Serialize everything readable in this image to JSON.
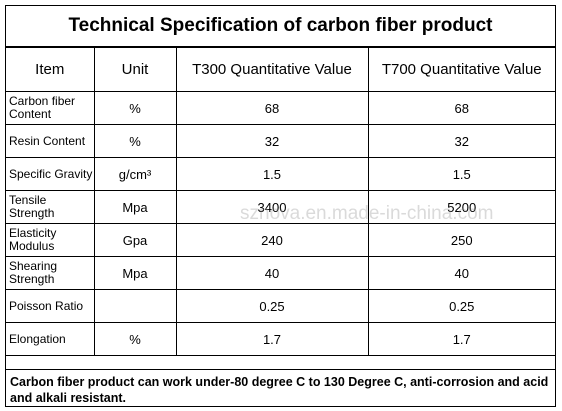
{
  "title": "Technical Specification of carbon fiber product",
  "table": {
    "header": [
      "Item",
      "Unit",
      "T300 Quantitative Value",
      "T700 Quantitative Value"
    ],
    "rows": [
      [
        "Carbon fiber Content",
        "%",
        "68",
        "68"
      ],
      [
        "Resin Content",
        "%",
        "32",
        "32"
      ],
      [
        "Specific Gravity",
        "g/cm³",
        "1.5",
        "1.5"
      ],
      [
        "Tensile Strength",
        "Mpa",
        "3400",
        "5200"
      ],
      [
        "Elasticity Modulus",
        "Gpa",
        "240",
        "250"
      ],
      [
        "Shearing Strength",
        "Mpa",
        "40",
        "40"
      ],
      [
        "Poisson Ratio",
        null,
        "0.25",
        "0.25"
      ],
      [
        "Elongation",
        "%",
        "1.7",
        "1.7"
      ]
    ]
  },
  "note": "Carbon fiber product can work under-80 degree C to 130 Degree C,  anti-corrosion and acid and alkali resistant.",
  "watermark": "sznova.en.made-in-china.com"
}
